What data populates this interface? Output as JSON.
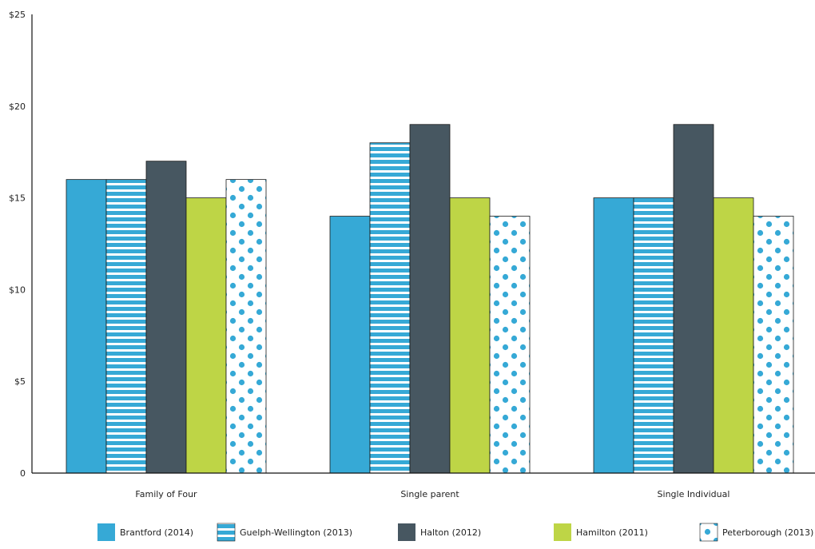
{
  "chart_data": {
    "type": "bar",
    "title": "",
    "xlabel": "",
    "ylabel": "",
    "categories": [
      "Family of Four",
      "Single parent",
      "Single Individual"
    ],
    "ylim": [
      0,
      25
    ],
    "yticks": [
      0,
      5,
      10,
      15,
      20,
      25
    ],
    "ytick_labels": [
      "0",
      "$5",
      "$10",
      "$15",
      "$20",
      "$25"
    ],
    "grid": false,
    "legend_position": "bottom",
    "series": [
      {
        "name": "Brantford (2014)",
        "values": [
          16,
          14,
          15
        ],
        "color": "#36a9d6",
        "pattern": "solid"
      },
      {
        "name": "Guelph-Wellington (2013)",
        "values": [
          16,
          18,
          15
        ],
        "color": "#36a9d6",
        "pattern": "horizontal-stripes"
      },
      {
        "name": "Halton (2012)",
        "values": [
          17,
          19,
          19
        ],
        "color": "#475761",
        "pattern": "solid"
      },
      {
        "name": "Hamilton (2011)",
        "values": [
          15,
          15,
          15
        ],
        "color": "#bed546",
        "pattern": "solid"
      },
      {
        "name": "Peterborough (2013)",
        "values": [
          16,
          14,
          14
        ],
        "color": "#36a9d6",
        "pattern": "dots"
      }
    ]
  }
}
